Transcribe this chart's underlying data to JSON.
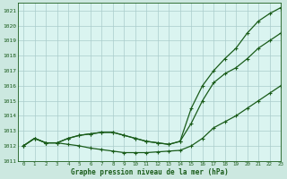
{
  "title": "Graphe pression niveau de la mer (hPa)",
  "background_color": "#cce8e8",
  "plot_bg_color": "#daf0f0",
  "grid_color": "#aacccc",
  "line_color": "#1a5c1a",
  "xlim": [
    -0.5,
    23
  ],
  "ylim": [
    1011.0,
    1021.5
  ],
  "yticks": [
    1011,
    1012,
    1013,
    1014,
    1015,
    1016,
    1017,
    1018,
    1019,
    1020,
    1021
  ],
  "xticks": [
    0,
    1,
    2,
    3,
    4,
    5,
    6,
    7,
    8,
    9,
    10,
    11,
    12,
    13,
    14,
    15,
    16,
    17,
    18,
    19,
    20,
    21,
    22,
    23
  ],
  "series_bottom": [
    1012.0,
    1012.5,
    1012.2,
    1012.2,
    1012.1,
    1012.0,
    1011.85,
    1011.75,
    1011.65,
    1011.55,
    1011.55,
    1011.55,
    1011.6,
    1011.65,
    1011.7,
    1012.0,
    1012.5,
    1013.2,
    1013.6,
    1014.0,
    1014.5,
    1015.0,
    1015.5,
    1016.0
  ],
  "series_mid": [
    1012.0,
    1012.5,
    1012.2,
    1012.2,
    1012.5,
    1012.7,
    1012.8,
    1012.9,
    1012.9,
    1012.7,
    1012.5,
    1012.3,
    1012.2,
    1012.1,
    1012.3,
    1013.5,
    1015.0,
    1016.2,
    1016.8,
    1017.2,
    1017.8,
    1018.5,
    1019.0,
    1019.5
  ],
  "series_top": [
    1012.0,
    1012.5,
    1012.2,
    1012.2,
    1012.5,
    1012.7,
    1012.8,
    1012.9,
    1012.9,
    1012.7,
    1012.5,
    1012.3,
    1012.2,
    1012.1,
    1012.3,
    1014.5,
    1016.0,
    1017.0,
    1017.8,
    1018.5,
    1019.5,
    1020.3,
    1020.8,
    1021.2
  ]
}
